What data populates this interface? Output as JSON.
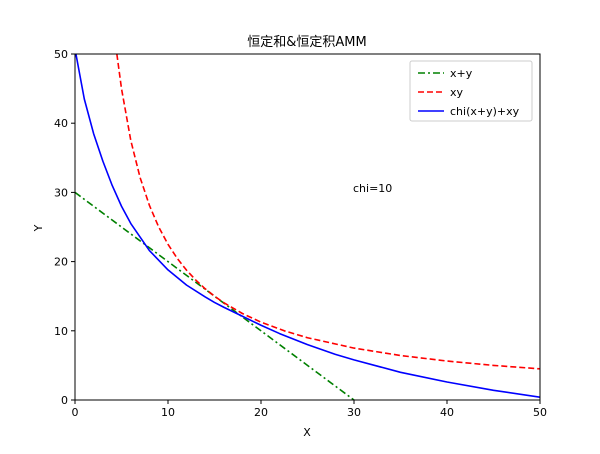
{
  "chart_data": {
    "type": "line",
    "title": "恒定和&恒定积AMM",
    "xlabel": "X",
    "ylabel": "Y",
    "xlim": [
      0,
      50
    ],
    "ylim": [
      0,
      50
    ],
    "x_ticks": [
      0,
      10,
      20,
      30,
      40,
      50
    ],
    "y_ticks": [
      0,
      10,
      20,
      30,
      40,
      50
    ],
    "grid": false,
    "legend_position": "top-right",
    "annotation": "chi=10",
    "annotation_at": {
      "x": 30,
      "y": 30
    },
    "series": [
      {
        "name": "x+y",
        "color": "#008000",
        "style": "dashdot",
        "x": [
          0,
          30
        ],
        "y": [
          30,
          0
        ]
      },
      {
        "name": "xy",
        "color": "#ff0000",
        "style": "dashed",
        "x": [
          4.5,
          5,
          6,
          7,
          8,
          9,
          10,
          11,
          12,
          13,
          14,
          15,
          16,
          18,
          20,
          22.5,
          25,
          30,
          35,
          40,
          45,
          50
        ],
        "y": [
          50,
          45,
          37.5,
          32.14,
          28.13,
          25,
          22.5,
          20.45,
          18.75,
          17.31,
          16.07,
          15,
          14.06,
          12.5,
          11.25,
          10,
          9,
          7.5,
          6.43,
          5.63,
          5,
          4.5
        ]
      },
      {
        "name": "chi(x+y)+xy",
        "color": "#0000ff",
        "style": "solid",
        "x": [
          0.1,
          1,
          2,
          3,
          4,
          5,
          6,
          8,
          10,
          12,
          14,
          15,
          16,
          18,
          20,
          22,
          25,
          28,
          30,
          35,
          40,
          45,
          50
        ],
        "y": [
          50,
          43.5,
          38.5,
          34.5,
          31,
          28,
          25.5,
          21.6,
          18.8,
          16.6,
          14.9,
          14.1,
          13.4,
          12.1,
          10.8,
          9.6,
          8.0,
          6.6,
          5.8,
          4.0,
          2.6,
          1.4,
          0.4
        ]
      }
    ]
  }
}
